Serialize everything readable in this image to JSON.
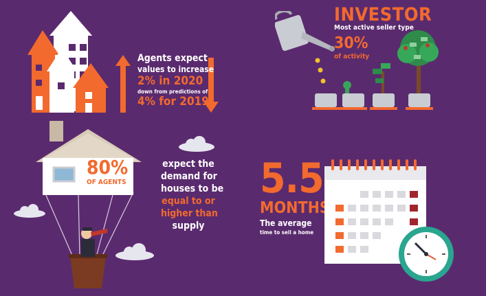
{
  "agents_block": {
    "line1": "Agents expect",
    "line2": "values to increase",
    "value": "2% in 2020",
    "line3": "down from predictions of",
    "prior": "4% for 2019"
  },
  "investor_block": {
    "title": "INVESTOR",
    "subtitle": "Most active seller type",
    "value": "30%",
    "caption": "of activity"
  },
  "balloon_block": {
    "value": "80%",
    "caption": "OF AGENTS"
  },
  "demand_block": {
    "line1": "expect the",
    "line2": "demand for",
    "line3": "houses to be",
    "line4": "equal to or",
    "line5": "higher than",
    "line6": "supply"
  },
  "months_block": {
    "value": "5.5",
    "unit": "MONTHS",
    "caption1": "The average",
    "caption2": "time to sell a home"
  },
  "colors": {
    "background": "#5a2a6e",
    "accent": "#f26a2e",
    "white": "#ffffff",
    "dark_red": "#a0262e"
  }
}
